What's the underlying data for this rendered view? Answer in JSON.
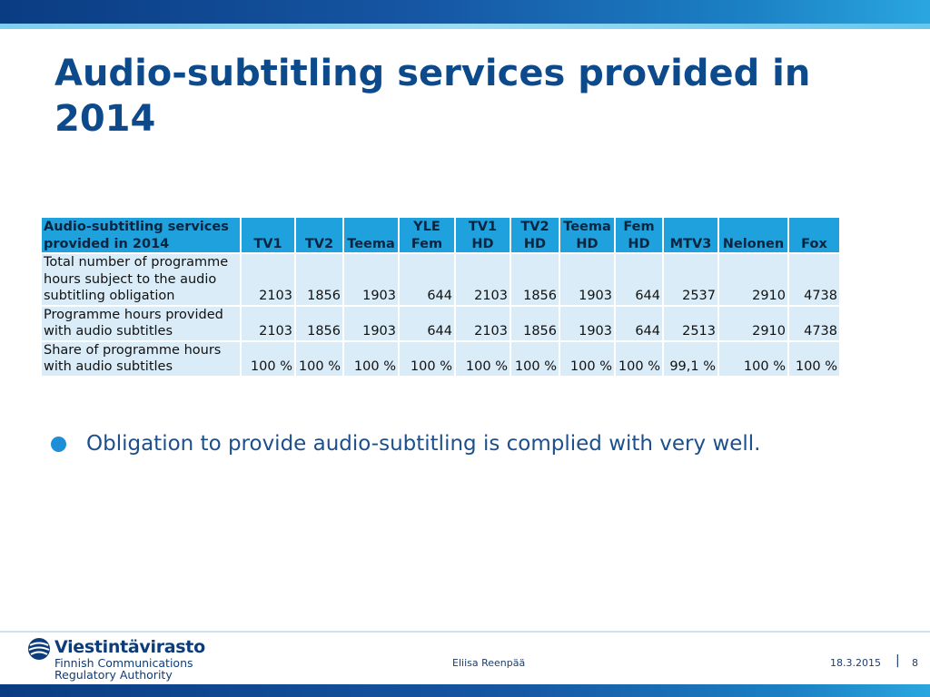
{
  "slide": {
    "title": "Audio-subtitling services provided in 2014"
  },
  "table": {
    "header_label": "Audio-subtitling services provided in 2014",
    "columns": [
      {
        "line1": "",
        "line2": "TV1"
      },
      {
        "line1": "",
        "line2": "TV2"
      },
      {
        "line1": "",
        "line2": "Teema"
      },
      {
        "line1": "YLE",
        "line2": "Fem"
      },
      {
        "line1": "TV1",
        "line2": "HD"
      },
      {
        "line1": "TV2",
        "line2": "HD"
      },
      {
        "line1": "Teema",
        "line2": "HD"
      },
      {
        "line1": "Fem",
        "line2": "HD"
      },
      {
        "line1": "",
        "line2": "MTV3"
      },
      {
        "line1": "",
        "line2": "Nelonen"
      },
      {
        "line1": "",
        "line2": "Fox"
      }
    ],
    "rows": [
      {
        "label": "Total number of programme hours subject to the audio subtitling obligation",
        "values": [
          "2103",
          "1856",
          "1903",
          "644",
          "2103",
          "1856",
          "1903",
          "644",
          "2537",
          "2910",
          "4738"
        ]
      },
      {
        "label": "Programme hours provided with audio subtitles",
        "values": [
          "2103",
          "1856",
          "1903",
          "644",
          "2103",
          "1856",
          "1903",
          "644",
          "2513",
          "2910",
          "4738"
        ]
      },
      {
        "label": "Share of programme hours with audio subtitles",
        "values": [
          "100 %",
          "100 %",
          "100 %",
          "100 %",
          "100 %",
          "100 %",
          "100 %",
          "100 %",
          "99,1 %",
          "100 %",
          "100 %"
        ]
      }
    ]
  },
  "bullets": [
    {
      "text": "Obligation to provide audio-subtitling is complied with very well."
    }
  ],
  "footer": {
    "logo_name": "Viestintävirasto",
    "logo_sub1": "Finnish Communications",
    "logo_sub2": "Regulatory Authority",
    "author": "Eliisa Reenpää",
    "date": "18.3.2015",
    "separator": "|",
    "page_number": "8"
  },
  "colors": {
    "title": "#0d4a8c",
    "header_fill": "#1ea1dc",
    "cell_fill": "#d9ecf7",
    "bullet": "#1e8fd6"
  }
}
